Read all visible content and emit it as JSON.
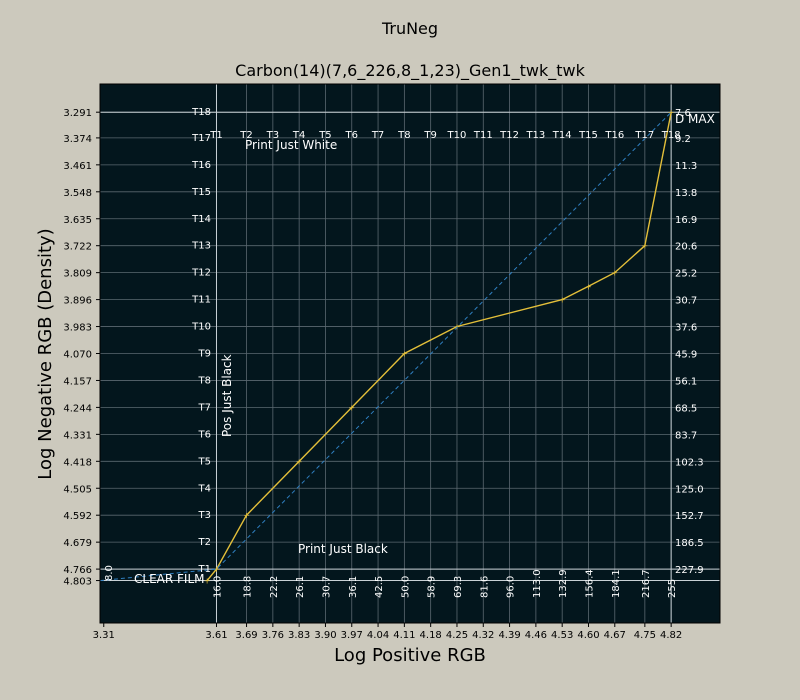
{
  "chart_data": {
    "type": "line",
    "suptitle": "TruNeg",
    "title": "Carbon(14)(7,6_226,8_1,23)_Gen1_twk_twk",
    "xlabel": "Log Positive RGB",
    "ylabel": "Log Negative RGB (Density)",
    "xlim": [
      3.3,
      4.95
    ],
    "ylim": [
      4.94,
      3.2
    ],
    "grid": true,
    "x_ticks": [
      "3.31",
      "3.61",
      "3.69",
      "3.76",
      "3.83",
      "3.90",
      "3.97",
      "4.04",
      "4.11",
      "4.18",
      "4.25",
      "4.32",
      "4.39",
      "4.46",
      "4.53",
      "4.60",
      "4.67",
      "4.75",
      "4.82"
    ],
    "x_tick_values": [
      3.31,
      3.61,
      3.69,
      3.76,
      3.83,
      3.9,
      3.97,
      4.04,
      4.11,
      4.18,
      4.25,
      4.32,
      4.39,
      4.46,
      4.53,
      4.6,
      4.67,
      4.75,
      4.82
    ],
    "y_ticks": [
      "3.291",
      "3.374",
      "3.461",
      "3.548",
      "3.635",
      "3.722",
      "3.809",
      "3.896",
      "3.983",
      "4.070",
      "4.157",
      "4.244",
      "4.331",
      "4.418",
      "4.505",
      "4.592",
      "4.679",
      "4.766",
      "4.803"
    ],
    "y_tick_values": [
      3.291,
      3.374,
      3.461,
      3.548,
      3.635,
      3.722,
      3.809,
      3.896,
      3.983,
      4.07,
      4.157,
      4.244,
      4.331,
      4.418,
      4.505,
      4.592,
      4.679,
      4.766,
      4.803
    ],
    "top_labels": [
      "T1",
      "T2",
      "T3",
      "T4",
      "T5",
      "T6",
      "T7",
      "T8",
      "T9",
      "T10",
      "T11",
      "T12",
      "T13",
      "T14",
      "T15",
      "T16",
      "T17",
      "T18"
    ],
    "left_labels": [
      "T18",
      "T17",
      "T16",
      "T15",
      "T14",
      "T13",
      "T12",
      "T11",
      "T10",
      "T9",
      "T8",
      "T7",
      "T6",
      "T5",
      "T4",
      "T3",
      "T2",
      "T1"
    ],
    "right_labels": [
      "7.6",
      "9.2",
      "11.3",
      "13.8",
      "16.9",
      "20.6",
      "25.2",
      "30.7",
      "37.6",
      "45.9",
      "56.1",
      "68.5",
      "83.7",
      "102.3",
      "125.0",
      "152.7",
      "186.5",
      "227.9"
    ],
    "bottom_labels": [
      "8.0",
      "16.0",
      "18.8",
      "22.2",
      "26.1",
      "30.7",
      "36.1",
      "42.5",
      "50.0",
      "58.9",
      "69.3",
      "81.6",
      "96.0",
      "113.0",
      "132.9",
      "156.4",
      "184.1",
      "216.7",
      "255"
    ],
    "annotations": {
      "d_max": "D MAX",
      "print_just_white": "Print Just White",
      "print_just_black": "Print Just Black",
      "pos_just_black": "Pos Just Black",
      "clear_film": "CLEAR FILM"
    },
    "series": [
      {
        "style": "solid",
        "color": "#e3bf3a",
        "points": [
          [
            3.585,
            4.803
          ],
          [
            3.61,
            4.766
          ],
          [
            3.69,
            4.592
          ],
          [
            3.83,
            4.418
          ],
          [
            3.97,
            4.244
          ],
          [
            4.11,
            4.07
          ],
          [
            4.25,
            3.983
          ],
          [
            4.53,
            3.896
          ],
          [
            4.6,
            3.853
          ],
          [
            4.67,
            3.809
          ],
          [
            4.75,
            3.722
          ],
          [
            4.82,
            3.291
          ]
        ]
      },
      {
        "style": "dashed",
        "color": "#2f7fc0",
        "points": [
          [
            3.3,
            4.803
          ],
          [
            3.61,
            4.766
          ],
          [
            4.82,
            3.291
          ]
        ]
      }
    ],
    "reference_lines": {
      "vertical": [
        3.61,
        4.82
      ],
      "horizontal": [
        3.291,
        4.766,
        4.803
      ]
    },
    "colors": {
      "plot_background": "#03161d",
      "figure_background": "#ccc9bd",
      "grid": "#5b6870",
      "reference": "#c9d1d6"
    }
  }
}
